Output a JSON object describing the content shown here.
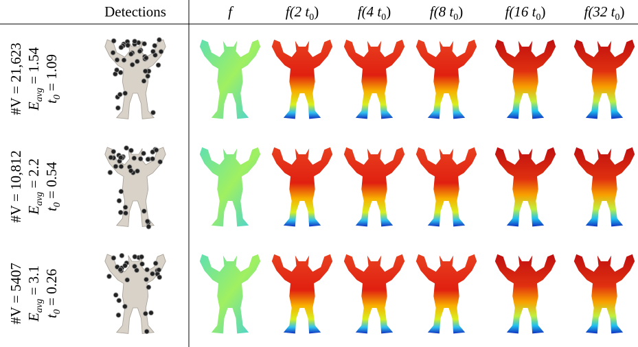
{
  "header": {
    "detections": "Detections",
    "columns": [
      {
        "pre": "f",
        "sub": "",
        "post": ""
      },
      {
        "pre": "f(2 t",
        "sub": "0",
        "post": ")"
      },
      {
        "pre": "f(4 t",
        "sub": "0",
        "post": ")"
      },
      {
        "pre": "f(8 t",
        "sub": "0",
        "post": ")"
      },
      {
        "pre": "f(16 t",
        "sub": "0",
        "post": ")"
      },
      {
        "pre": "f(32 t",
        "sub": "0",
        "post": ")"
      }
    ]
  },
  "rows": [
    {
      "vertices": "#V = 21,623",
      "energy": {
        "symbol": "E",
        "sub": "avg",
        "text": " = 1.54"
      },
      "t0": {
        "symbol": "t",
        "sub": "0",
        "text": " = 1.09"
      }
    },
    {
      "vertices": "#V = 10,812",
      "energy": {
        "symbol": "E",
        "sub": "avg",
        "text": " = 2.2"
      },
      "t0": {
        "symbol": "t",
        "sub": "0",
        "text": " = 0.54"
      }
    },
    {
      "vertices": "#V = 5407",
      "energy": {
        "symbol": "E",
        "sub": "avg",
        "text": " = 3.1"
      },
      "t0": {
        "symbol": "t",
        "sub": "0",
        "text": " = 0.26"
      }
    }
  ]
}
